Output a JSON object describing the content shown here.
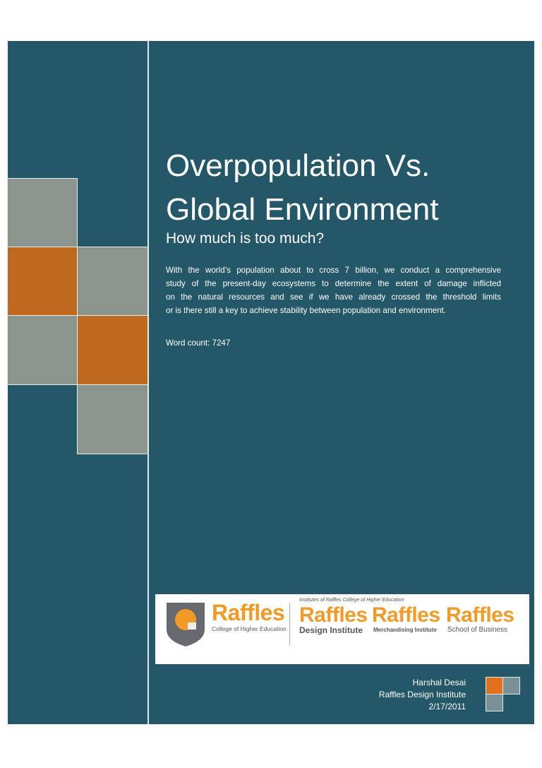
{
  "cover": {
    "title_line1": "Overpopulation Vs.",
    "title_line2": "Global Environment",
    "subtitle": "How much is too much?",
    "abstract_lines": [
      "With the world’s population about to cross 7 billion, we conduct a comprehensive",
      "study of the present-day ecosystems to determine the extent of damage inflicted",
      "on the natural resources and see if we have already crossed the threshold limits",
      "or is there still a key to achieve stability between population and environment."
    ],
    "word_count": "Word count: 7247"
  },
  "logo": {
    "college_name": "Raffles",
    "college_sub": "College of Higher Education",
    "institutes_caption": "Institutes of Raffles College of Higher Education",
    "institutes": [
      {
        "name": "Raffles",
        "sub": "Design Institute"
      },
      {
        "name": "Raffles",
        "sub": "Merchandising Institute"
      },
      {
        "name": "Raffles",
        "sub": "School of Business"
      }
    ]
  },
  "author": {
    "name": "Harshal Desai",
    "institution": "Raffles Design Institute",
    "date": "2/17/2011"
  },
  "colors": {
    "panel": "#245868",
    "gray": "#8c958d",
    "orange": "#bf681f",
    "logo_orange": "#f29a26"
  }
}
